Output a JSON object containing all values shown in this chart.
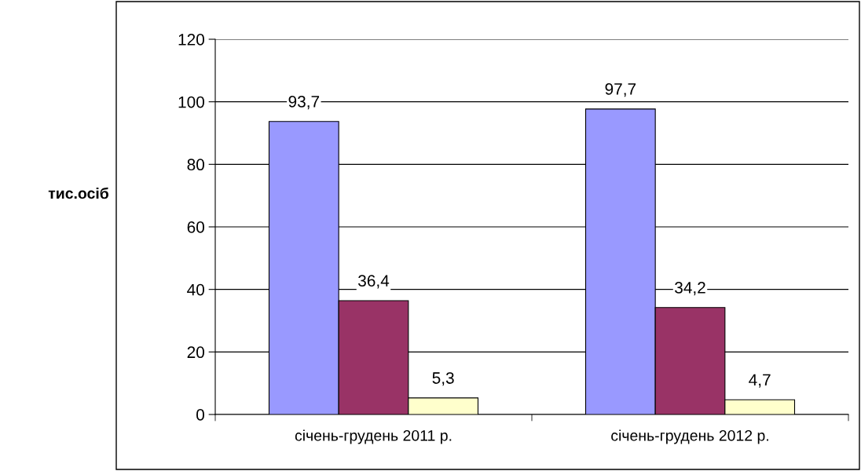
{
  "chart_data": {
    "type": "bar",
    "ylabel": "тис.осіб",
    "categories": [
      "січень-грудень 2011 р.",
      "січень-грудень 2012 р."
    ],
    "series": [
      {
        "color": "#9999ff",
        "values": [
          93.7,
          97.7
        ],
        "value_labels": [
          "93,7",
          "97,7"
        ]
      },
      {
        "color": "#993366",
        "values": [
          36.4,
          34.2
        ],
        "value_labels": [
          "36,4",
          "34,2"
        ]
      },
      {
        "color": "#ffffcc",
        "values": [
          5.3,
          4.7
        ],
        "value_labels": [
          "5,3",
          "4,7"
        ]
      }
    ],
    "ylim": [
      0,
      120
    ],
    "yticks": [
      0,
      20,
      40,
      60,
      80,
      100,
      120
    ],
    "grid": "y",
    "legend": false
  }
}
